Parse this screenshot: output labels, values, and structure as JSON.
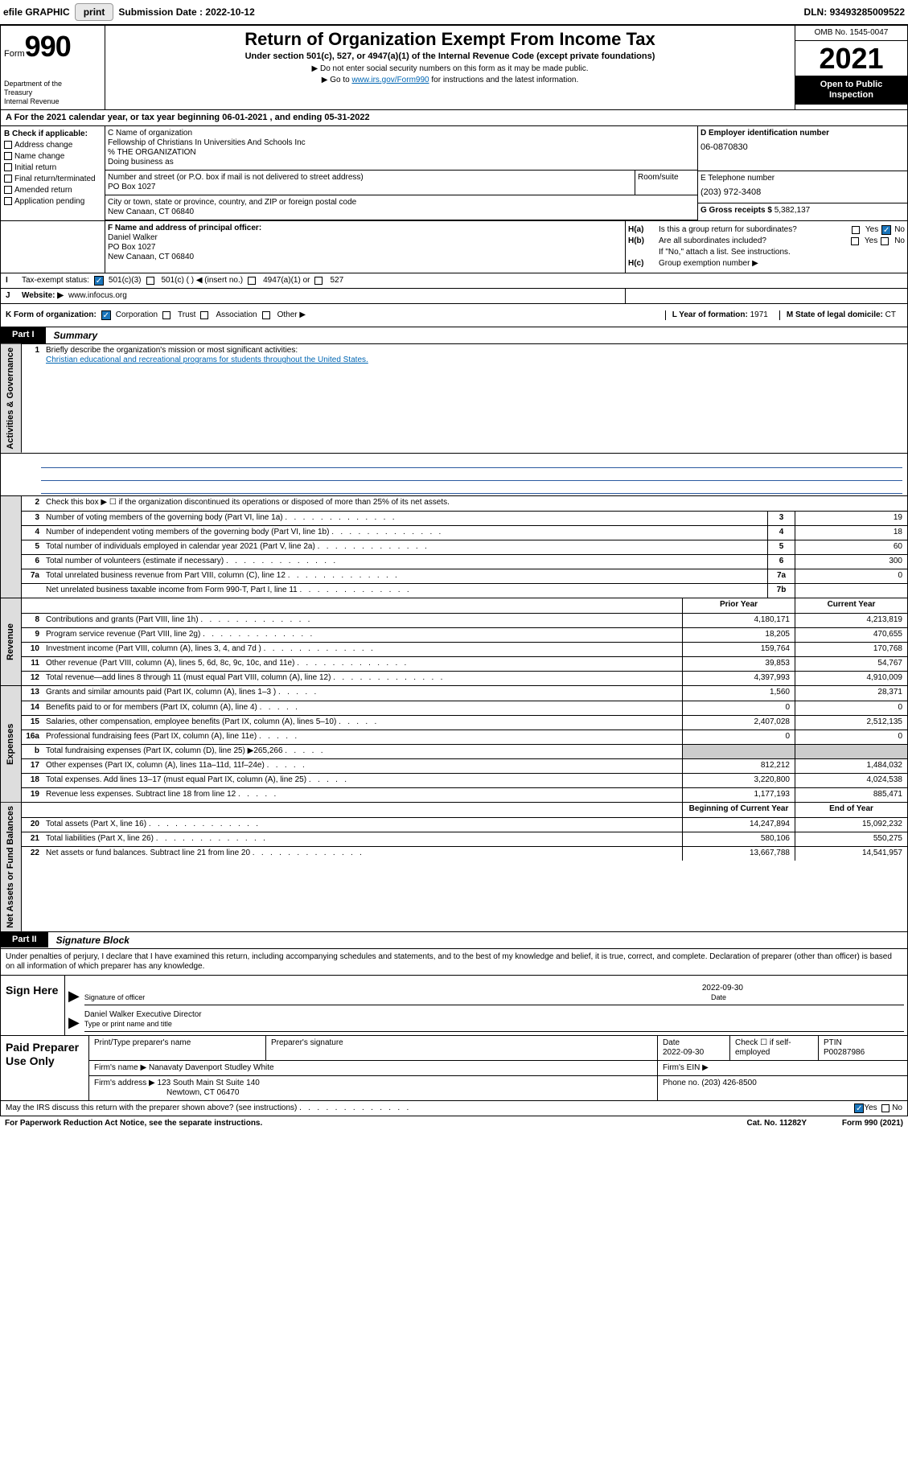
{
  "topbar": {
    "efile_label": "efile GRAPHIC",
    "print_btn": "print",
    "sub_label": "Submission Date :",
    "sub_date": "2022-10-12",
    "dln_label": "DLN:",
    "dln": "93493285009522"
  },
  "header": {
    "form_word": "Form",
    "form_number": "990",
    "dept": "Department of the Treasury\nInternal Revenue Service",
    "title": "Return of Organization Exempt From Income Tax",
    "sub": "Under section 501(c), 527, or 4947(a)(1) of the Internal Revenue Code (except private foundations)",
    "note1": "▶ Do not enter social security numbers on this form as it may be made public.",
    "note2_pre": "▶ Go to ",
    "note2_link": "www.irs.gov/Form990",
    "note2_post": " for instructions and the latest information.",
    "omb": "OMB No. 1545-0047",
    "year": "2021",
    "inspection": "Open to Public Inspection"
  },
  "rowA": {
    "text_pre": "A For the 2021 calendar year, or tax year beginning ",
    "begin": "06-01-2021",
    "mid": " , and ending ",
    "end": "05-31-2022"
  },
  "colB": {
    "hdr": "B Check if applicable:",
    "opts": [
      "Address change",
      "Name change",
      "Initial return",
      "Final return/terminated",
      "Amended return",
      "Application pending"
    ]
  },
  "colC": {
    "name_hdr": "C Name of organization",
    "name1": "Fellowship of Christians In Universities And Schools Inc",
    "name2": "% THE ORGANIZATION",
    "dba_hdr": "Doing business as",
    "street_hdr": "Number and street (or P.O. box if mail is not delivered to street address)",
    "street": "PO Box 1027",
    "suite_hdr": "Room/suite",
    "city_hdr": "City or town, state or province, country, and ZIP or foreign postal code",
    "city": "New Canaan, CT  06840"
  },
  "colD": {
    "ein_hdr": "D Employer identification number",
    "ein": "06-0870830",
    "phone_hdr": "E Telephone number",
    "phone": "(203) 972-3408",
    "gross_hdr": "G Gross receipts $",
    "gross": "5,382,137"
  },
  "colF": {
    "hdr": "F Name and address of principal officer:",
    "name": "Daniel Walker",
    "addr1": "PO Box 1027",
    "addr2": "New Canaan, CT  06840"
  },
  "colH": {
    "ha_label": "Is this a group return for subordinates?",
    "ha_yes": "Yes",
    "ha_no": "No",
    "hb_label": "Are all subordinates included?",
    "hb_note": "If \"No,\" attach a list. See instructions.",
    "hc_label": "Group exemption number ▶"
  },
  "rowI": {
    "label": "Tax-exempt status:",
    "opt1": "501(c)(3)",
    "opt2": "501(c) (  ) ◀ (insert no.)",
    "opt3": "4947(a)(1) or",
    "opt4": "527"
  },
  "rowJ": {
    "label": "Website: ▶",
    "value": "www.infocus.org"
  },
  "rowK": {
    "label": "K Form of organization:",
    "opts": [
      "Corporation",
      "Trust",
      "Association",
      "Other ▶"
    ],
    "l_label": "L Year of formation:",
    "l_val": "1971",
    "m_label": "M State of legal domicile:",
    "m_val": "CT"
  },
  "part1": {
    "tab": "Part I",
    "title": "Summary"
  },
  "sections": {
    "gov": "Activities & Governance",
    "rev": "Revenue",
    "exp": "Expenses",
    "net": "Net Assets or Fund Balances"
  },
  "summary": {
    "q1": "Briefly describe the organization's mission or most significant activities:",
    "q1_ans": "Christian educational and recreational programs for students throughout the United States.",
    "q2": "Check this box ▶ ☐ if the organization discontinued its operations or disposed of more than 25% of its net assets.",
    "rows_gov": [
      {
        "n": "3",
        "d": "Number of voting members of the governing body (Part VI, line 1a)",
        "box": "3",
        "v": "19"
      },
      {
        "n": "4",
        "d": "Number of independent voting members of the governing body (Part VI, line 1b)",
        "box": "4",
        "v": "18"
      },
      {
        "n": "5",
        "d": "Total number of individuals employed in calendar year 2021 (Part V, line 2a)",
        "box": "5",
        "v": "60"
      },
      {
        "n": "6",
        "d": "Total number of volunteers (estimate if necessary)",
        "box": "6",
        "v": "300"
      },
      {
        "n": "7a",
        "d": "Total unrelated business revenue from Part VIII, column (C), line 12",
        "box": "7a",
        "v": "0"
      },
      {
        "n": "",
        "d": "Net unrelated business taxable income from Form 990-T, Part I, line 11",
        "box": "7b",
        "v": ""
      }
    ],
    "col_hdrs": {
      "prior": "Prior Year",
      "current": "Current Year"
    },
    "rows_rev": [
      {
        "n": "8",
        "d": "Contributions and grants (Part VIII, line 1h)",
        "p": "4,180,171",
        "c": "4,213,819"
      },
      {
        "n": "9",
        "d": "Program service revenue (Part VIII, line 2g)",
        "p": "18,205",
        "c": "470,655"
      },
      {
        "n": "10",
        "d": "Investment income (Part VIII, column (A), lines 3, 4, and 7d )",
        "p": "159,764",
        "c": "170,768"
      },
      {
        "n": "11",
        "d": "Other revenue (Part VIII, column (A), lines 5, 6d, 8c, 9c, 10c, and 11e)",
        "p": "39,853",
        "c": "54,767"
      },
      {
        "n": "12",
        "d": "Total revenue—add lines 8 through 11 (must equal Part VIII, column (A), line 12)",
        "p": "4,397,993",
        "c": "4,910,009"
      }
    ],
    "rows_exp": [
      {
        "n": "13",
        "d": "Grants and similar amounts paid (Part IX, column (A), lines 1–3 )",
        "p": "1,560",
        "c": "28,371"
      },
      {
        "n": "14",
        "d": "Benefits paid to or for members (Part IX, column (A), line 4)",
        "p": "0",
        "c": "0"
      },
      {
        "n": "15",
        "d": "Salaries, other compensation, employee benefits (Part IX, column (A), lines 5–10)",
        "p": "2,407,028",
        "c": "2,512,135"
      },
      {
        "n": "16a",
        "d": "Professional fundraising fees (Part IX, column (A), line 11e)",
        "p": "0",
        "c": "0"
      },
      {
        "n": "b",
        "d": "Total fundraising expenses (Part IX, column (D), line 25) ▶265,266",
        "p": "",
        "c": "",
        "shaded": true
      },
      {
        "n": "17",
        "d": "Other expenses (Part IX, column (A), lines 11a–11d, 11f–24e)",
        "p": "812,212",
        "c": "1,484,032"
      },
      {
        "n": "18",
        "d": "Total expenses. Add lines 13–17 (must equal Part IX, column (A), line 25)",
        "p": "3,220,800",
        "c": "4,024,538"
      },
      {
        "n": "19",
        "d": "Revenue less expenses. Subtract line 18 from line 12",
        "p": "1,177,193",
        "c": "885,471"
      }
    ],
    "col_hdrs2": {
      "begin": "Beginning of Current Year",
      "end": "End of Year"
    },
    "rows_net": [
      {
        "n": "20",
        "d": "Total assets (Part X, line 16)",
        "p": "14,247,894",
        "c": "15,092,232"
      },
      {
        "n": "21",
        "d": "Total liabilities (Part X, line 26)",
        "p": "580,106",
        "c": "550,275"
      },
      {
        "n": "22",
        "d": "Net assets or fund balances. Subtract line 21 from line 20",
        "p": "13,667,788",
        "c": "14,541,957"
      }
    ]
  },
  "part2": {
    "tab": "Part II",
    "title": "Signature Block"
  },
  "sig": {
    "intro": "Under penalties of perjury, I declare that I have examined this return, including accompanying schedules and statements, and to the best of my knowledge and belief, it is true, correct, and complete. Declaration of preparer (other than officer) is based on all information of which preparer has any knowledge.",
    "sign_here": "Sign Here",
    "sig_label": "Signature of officer",
    "date_label": "Date",
    "date": "2022-09-30",
    "officer": "Daniel Walker  Executive Director",
    "type_label": "Type or print name and title"
  },
  "prep": {
    "label": "Paid Preparer Use Only",
    "h1": "Print/Type preparer's name",
    "h2": "Preparer's signature",
    "h3": "Date",
    "h3v": "2022-09-30",
    "h4": "Check ☐ if self-employed",
    "h5": "PTIN",
    "h5v": "P00287986",
    "firm_name_l": "Firm's name    ▶",
    "firm_name": "Nanavaty Davenport Studley White",
    "firm_ein_l": "Firm's EIN ▶",
    "firm_addr_l": "Firm's address ▶",
    "firm_addr1": "123 South Main St Suite 140",
    "firm_addr2": "Newtown, CT  06470",
    "phone_l": "Phone no.",
    "phone": "(203) 426-8500"
  },
  "footer": {
    "q": "May the IRS discuss this return with the preparer shown above? (see instructions)",
    "yes": "Yes",
    "no": "No",
    "pra": "For Paperwork Reduction Act Notice, see the separate instructions.",
    "cat": "Cat. No. 11282Y",
    "form": "Form 990 (2021)"
  }
}
